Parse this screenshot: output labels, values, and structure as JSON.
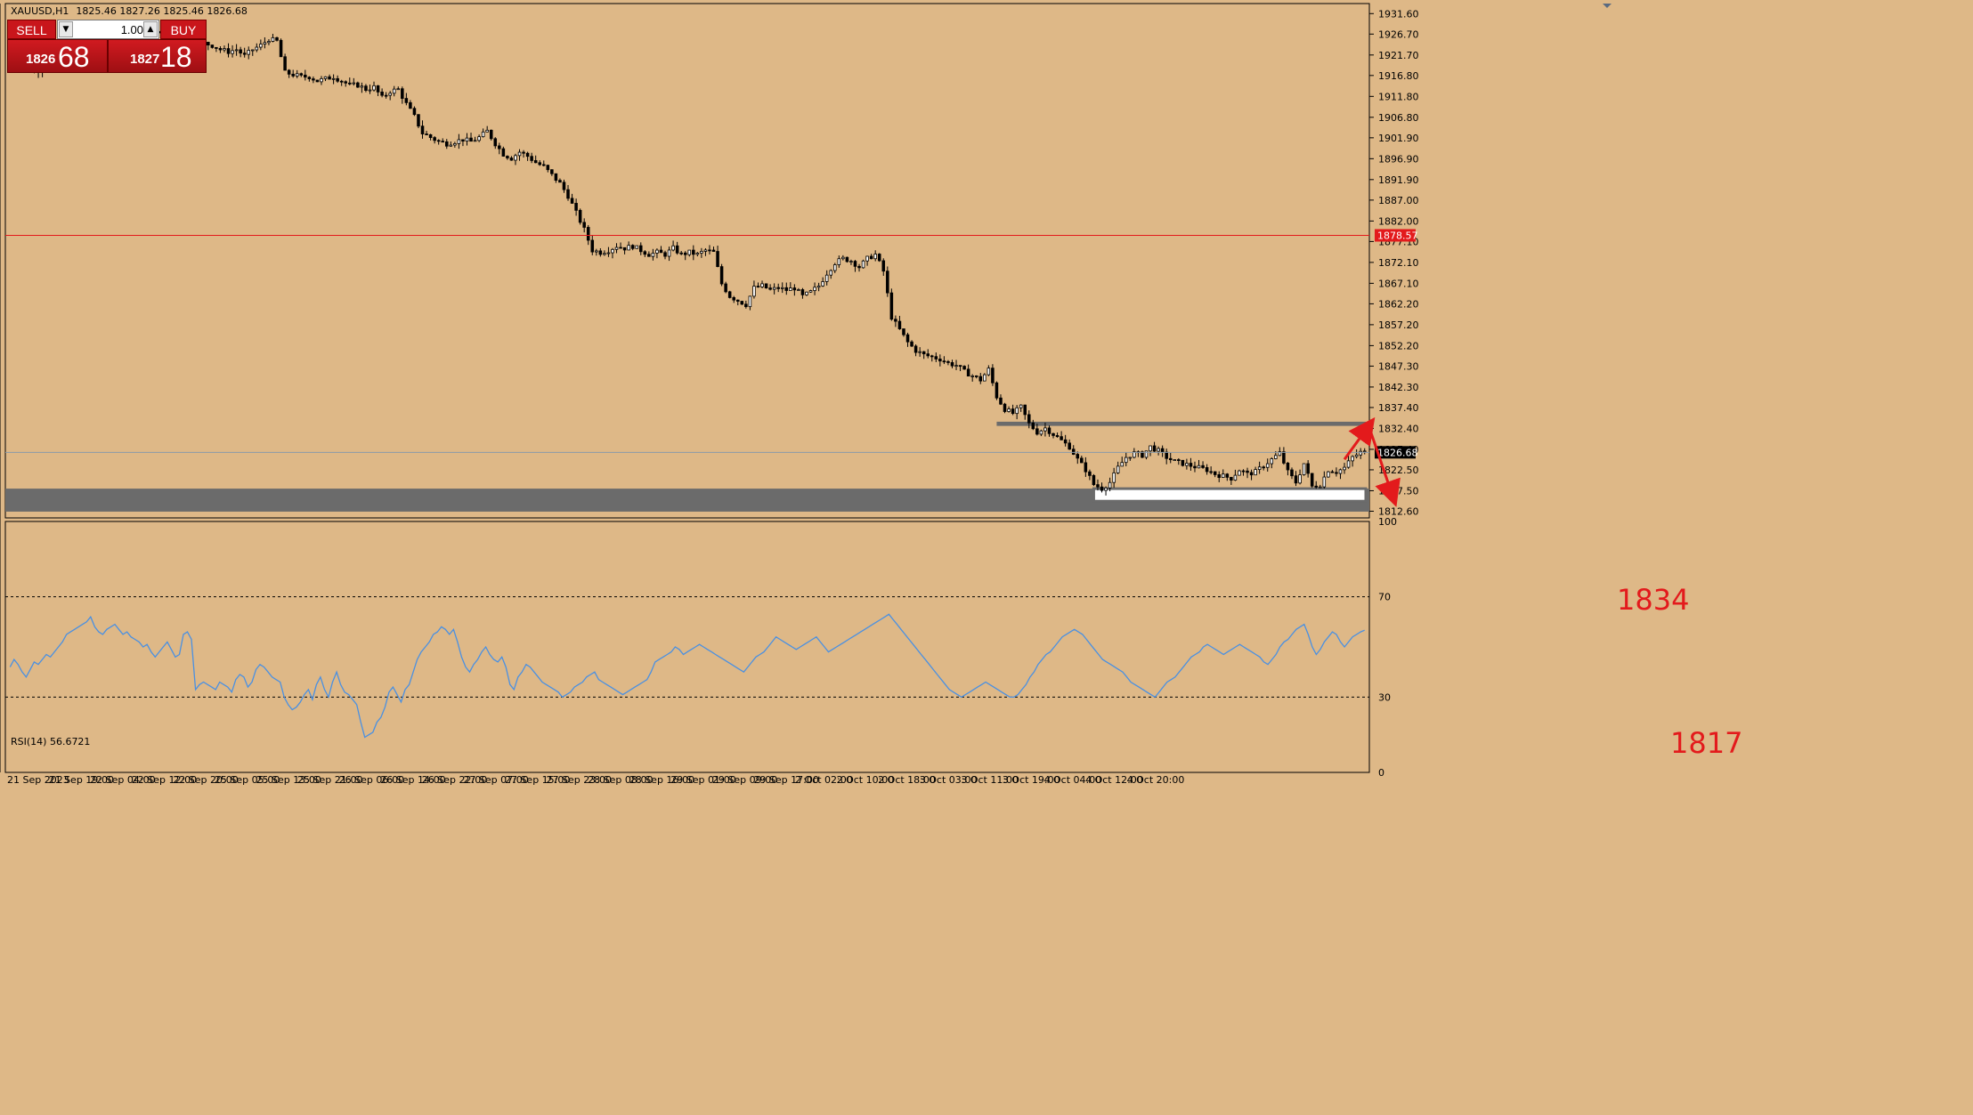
{
  "header": {
    "symbol": "XAUUSD,H1",
    "ohlc": "1825.46 1827.26 1825.46 1826.68"
  },
  "trade_panel": {
    "sell_label": "SELL",
    "buy_label": "BUY",
    "lot": "1.00",
    "sell_price_main": "1826",
    "sell_price_pips": "68",
    "buy_price_main": "1827",
    "buy_price_pips": "18"
  },
  "colors": {
    "background": "#deb887",
    "candle_up_fill": "#ffffff",
    "candle_down_fill": "#000000",
    "resistance_line": "#e31a1c",
    "zone": "#6b6b6b",
    "rsi_line": "#4a90e2",
    "annotation": "#e31a1c",
    "current_price_label": "#000000",
    "red_level_label": "#e31a1c"
  },
  "indicator": {
    "label": "RSI(14) 56.6721"
  },
  "annotations": {
    "upper": "1834",
    "lower": "1817"
  },
  "chart_data": [
    {
      "type": "candlestick",
      "title": "",
      "price_ticks": [
        "1931.60",
        "1926.70",
        "1921.70",
        "1916.80",
        "1911.80",
        "1906.80",
        "1901.90",
        "1896.90",
        "1891.90",
        "1887.00",
        "1882.00",
        "1877.10",
        "1872.10",
        "1867.10",
        "1862.20",
        "1857.20",
        "1852.20",
        "1847.30",
        "1842.30",
        "1837.40",
        "1832.40",
        "1827.40",
        "1822.50",
        "1817.50",
        "1812.60"
      ],
      "ylim": [
        1811.0,
        1934.0
      ],
      "time_labels": [
        "21 Sep 2023",
        "21 Sep 19:00",
        "22 Sep 04:00",
        "22 Sep 12:00",
        "22 Sep 20:00",
        "25 Sep 05:00",
        "25 Sep 13:00",
        "25 Sep 21:00",
        "26 Sep 06:00",
        "26 Sep 14:00",
        "26 Sep 22:00",
        "27 Sep 07:00",
        "27 Sep 15:00",
        "27 Sep 23:00",
        "28 Sep 08:00",
        "28 Sep 16:00",
        "29 Sep 01:00",
        "29 Sep 09:00",
        "29 Sep 17:00",
        "2 Oct 02:00",
        "2 Oct 10:00",
        "2 Oct 18:00",
        "3 Oct 03:00",
        "3 Oct 11:00",
        "3 Oct 19:00",
        "4 Oct 04:00",
        "4 Oct 12:00",
        "4 Oct 20:00"
      ],
      "close_path": [
        [
          0,
          1923.5
        ],
        [
          4,
          1921.0
        ],
        [
          6,
          1917.5
        ],
        [
          8,
          1919.0
        ],
        [
          10,
          1918.5
        ],
        [
          12,
          1920.0
        ],
        [
          14,
          1919.5
        ],
        [
          16,
          1920.0
        ],
        [
          18,
          1921.0
        ],
        [
          20,
          1923.0
        ],
        [
          22,
          1924.0
        ],
        [
          24,
          1925.5
        ],
        [
          26,
          1928.0
        ],
        [
          28,
          1929.0
        ],
        [
          30,
          1927.5
        ],
        [
          32,
          1929.0
        ],
        [
          34,
          1928.5
        ],
        [
          36,
          1927.0
        ],
        [
          38,
          1926.5
        ],
        [
          40,
          1926.0
        ],
        [
          42,
          1926.0
        ],
        [
          44,
          1925.5
        ],
        [
          46,
          1925.0
        ],
        [
          48,
          1924.5
        ],
        [
          50,
          1924.0
        ],
        [
          52,
          1923.0
        ],
        [
          54,
          1922.5
        ],
        [
          56,
          1923.0
        ],
        [
          58,
          1921.5
        ],
        [
          60,
          1923.0
        ],
        [
          62,
          1924.0
        ],
        [
          64,
          1925.5
        ],
        [
          66,
          1925.0
        ],
        [
          68,
          1917.5
        ],
        [
          70,
          1917.0
        ],
        [
          72,
          1916.5
        ],
        [
          74,
          1916.5
        ],
        [
          76,
          1915.5
        ],
        [
          78,
          1916.0
        ],
        [
          80,
          1916.5
        ],
        [
          82,
          1915.5
        ],
        [
          84,
          1914.5
        ],
        [
          86,
          1914.5
        ],
        [
          88,
          1913.5
        ],
        [
          90,
          1914.0
        ],
        [
          92,
          1911.5
        ],
        [
          94,
          1913.0
        ],
        [
          96,
          1913.5
        ],
        [
          98,
          1910.0
        ],
        [
          100,
          1907.0
        ],
        [
          102,
          1903.0
        ],
        [
          104,
          1902.0
        ],
        [
          106,
          1901.0
        ],
        [
          108,
          1900.5
        ],
        [
          110,
          1901.0
        ],
        [
          112,
          1901.5
        ],
        [
          114,
          1901.0
        ],
        [
          116,
          1902.0
        ],
        [
          118,
          1903.5
        ],
        [
          120,
          1900.5
        ],
        [
          122,
          1898.0
        ],
        [
          124,
          1897.0
        ],
        [
          126,
          1898.5
        ],
        [
          128,
          1897.5
        ],
        [
          130,
          1896.0
        ],
        [
          132,
          1895.0
        ],
        [
          134,
          1893.0
        ],
        [
          136,
          1891.0
        ],
        [
          138,
          1888.0
        ],
        [
          140,
          1884.0
        ],
        [
          142,
          1880.0
        ],
        [
          144,
          1875.0
        ],
        [
          146,
          1874.5
        ],
        [
          148,
          1875.0
        ],
        [
          150,
          1876.0
        ],
        [
          152,
          1875.5
        ],
        [
          154,
          1876.0
        ],
        [
          156,
          1875.0
        ],
        [
          158,
          1874.0
        ],
        [
          160,
          1874.5
        ],
        [
          162,
          1874.0
        ],
        [
          164,
          1875.5
        ],
        [
          166,
          1874.0
        ],
        [
          168,
          1874.5
        ],
        [
          170,
          1874.0
        ],
        [
          172,
          1875.0
        ],
        [
          174,
          1874.5
        ],
        [
          176,
          1867.0
        ],
        [
          178,
          1864.0
        ],
        [
          180,
          1863.0
        ],
        [
          182,
          1862.0
        ],
        [
          184,
          1866.0
        ],
        [
          186,
          1866.5
        ],
        [
          188,
          1865.5
        ],
        [
          190,
          1866.0
        ],
        [
          192,
          1865.5
        ],
        [
          194,
          1866.0
        ],
        [
          196,
          1864.0
        ],
        [
          198,
          1865.0
        ],
        [
          200,
          1866.5
        ],
        [
          202,
          1869.5
        ],
        [
          204,
          1872.0
        ],
        [
          206,
          1873.0
        ],
        [
          208,
          1872.5
        ],
        [
          210,
          1871.0
        ],
        [
          212,
          1873.0
        ],
        [
          214,
          1874.0
        ],
        [
          216,
          1870.0
        ],
        [
          218,
          1859.0
        ],
        [
          220,
          1856.0
        ],
        [
          222,
          1853.0
        ],
        [
          224,
          1851.0
        ],
        [
          226,
          1850.0
        ],
        [
          228,
          1849.5
        ],
        [
          230,
          1849.0
        ],
        [
          232,
          1848.0
        ],
        [
          234,
          1847.5
        ],
        [
          236,
          1846.0
        ],
        [
          238,
          1845.0
        ],
        [
          240,
          1844.0
        ],
        [
          242,
          1846.5
        ],
        [
          244,
          1840.0
        ],
        [
          246,
          1837.0
        ],
        [
          248,
          1836.0
        ],
        [
          250,
          1837.5
        ],
        [
          252,
          1833.5
        ],
        [
          254,
          1831.5
        ],
        [
          256,
          1832.5
        ],
        [
          258,
          1831.0
        ],
        [
          260,
          1829.5
        ],
        [
          262,
          1828.0
        ],
        [
          264,
          1825.0
        ],
        [
          266,
          1822.5
        ],
        [
          268,
          1819.0
        ],
        [
          270,
          1818.0
        ],
        [
          272,
          1819.5
        ],
        [
          274,
          1823.0
        ],
        [
          276,
          1825.5
        ],
        [
          278,
          1826.5
        ],
        [
          280,
          1826.0
        ],
        [
          282,
          1828.0
        ],
        [
          284,
          1827.0
        ],
        [
          286,
          1825.5
        ],
        [
          288,
          1824.5
        ],
        [
          290,
          1824.0
        ],
        [
          292,
          1823.5
        ],
        [
          294,
          1823.0
        ],
        [
          296,
          1822.5
        ],
        [
          298,
          1821.5
        ],
        [
          300,
          1821.0
        ],
        [
          302,
          1820.5
        ],
        [
          304,
          1822.5
        ],
        [
          306,
          1821.5
        ],
        [
          308,
          1822.0
        ],
        [
          310,
          1823.5
        ],
        [
          312,
          1825.0
        ],
        [
          314,
          1826.5
        ],
        [
          316,
          1822.0
        ],
        [
          318,
          1819.5
        ],
        [
          320,
          1824.0
        ],
        [
          322,
          1818.5
        ],
        [
          324,
          1819.0
        ],
        [
          326,
          1822.5
        ],
        [
          328,
          1822.0
        ],
        [
          330,
          1823.0
        ],
        [
          332,
          1825.5
        ],
        [
          334,
          1826.68
        ]
      ],
      "bars_total": 336,
      "resistance_level": 1878.57,
      "resistance_level_label": "1878.57",
      "current_price": 1826.68,
      "current_price_label": "1826.68",
      "zones": [
        {
          "name": "upper-zone",
          "from_bar": 244,
          "to_bar": 336,
          "price_high": 1834.0,
          "price_low": 1833.0
        },
        {
          "name": "support-band",
          "from_bar": 0,
          "to_bar": 336,
          "price_high": 1818.0,
          "price_low": 1812.5
        },
        {
          "name": "inner-range",
          "from_bar": 268,
          "to_bar": 336,
          "price_high": 1818.0,
          "price_low": 1815.0
        }
      ],
      "projection": [
        {
          "from_bar": 330,
          "from_price": 1825.0,
          "to_bar": 336,
          "to_price": 1833.0
        },
        {
          "from_bar": 336,
          "from_price": 1833.0,
          "to_bar": 342,
          "to_price": 1816.0
        }
      ]
    },
    {
      "type": "line",
      "name": "RSI(14)",
      "ylim": [
        0,
        100
      ],
      "levels": [
        30,
        70
      ],
      "tick_labels": [
        "100",
        "70",
        "30",
        "0"
      ],
      "values": [
        42,
        45,
        43,
        40,
        38,
        41,
        44,
        43,
        45,
        47,
        46,
        48,
        50,
        52,
        55,
        56,
        57,
        58,
        59,
        60,
        62,
        58,
        56,
        55,
        57,
        58,
        59,
        57,
        55,
        56,
        54,
        53,
        52,
        50,
        51,
        48,
        46,
        48,
        50,
        52,
        49,
        46,
        47,
        55,
        56,
        53,
        33,
        35,
        36,
        35,
        34,
        33,
        36,
        35,
        34,
        32,
        37,
        39,
        38,
        34,
        36,
        41,
        43,
        42,
        40,
        38,
        37,
        36,
        30,
        27,
        25,
        26,
        28,
        31,
        33,
        29,
        35,
        38,
        33,
        30,
        36,
        40,
        35,
        32,
        31,
        29,
        27,
        20,
        14,
        15,
        16,
        20,
        22,
        26,
        32,
        34,
        31,
        28,
        33,
        35,
        40,
        45,
        48,
        50,
        52,
        55,
        56,
        58,
        57,
        55,
        57,
        52,
        46,
        42,
        40,
        43,
        45,
        48,
        50,
        47,
        45,
        44,
        46,
        42,
        35,
        33,
        38,
        40,
        43,
        42,
        40,
        38,
        36,
        35,
        34,
        33,
        32,
        30,
        31,
        32,
        34,
        35,
        36,
        38,
        39,
        40,
        37,
        36,
        35,
        34,
        33,
        32,
        31,
        32,
        33,
        34,
        35,
        36,
        37,
        40,
        44,
        45,
        46,
        47,
        48,
        50,
        49,
        47,
        48,
        49,
        50,
        51,
        50,
        49,
        48,
        47,
        46,
        45,
        44,
        43,
        42,
        41,
        40,
        42,
        44,
        46,
        47,
        48,
        50,
        52,
        54,
        53,
        52,
        51,
        50,
        49,
        50,
        51,
        52,
        53,
        54,
        52,
        50,
        48,
        49,
        50,
        51,
        52,
        53,
        54,
        55,
        56,
        57,
        58,
        59,
        60,
        61,
        62,
        63,
        61,
        59,
        57,
        55,
        53,
        51,
        49,
        47,
        45,
        43,
        41,
        39,
        37,
        35,
        33,
        32,
        31,
        30,
        31,
        32,
        33,
        34,
        35,
        36,
        35,
        34,
        33,
        32,
        31,
        30,
        30,
        31,
        33,
        35,
        38,
        40,
        43,
        45,
        47,
        48,
        50,
        52,
        54,
        55,
        56,
        57,
        56,
        55,
        53,
        51,
        49,
        47,
        45,
        44,
        43,
        42,
        41,
        40,
        38,
        36,
        35,
        34,
        33,
        32,
        31,
        30,
        32,
        34,
        36,
        37,
        38,
        40,
        42,
        44,
        46,
        47,
        48,
        50,
        51,
        50,
        49,
        48,
        47,
        48,
        49,
        50,
        51,
        50,
        49,
        48,
        47,
        46,
        44,
        43,
        45,
        47,
        50,
        52,
        53,
        55,
        57,
        58,
        59,
        55,
        50,
        47,
        49,
        52,
        54,
        56,
        55,
        52,
        50,
        52,
        54,
        55,
        56,
        56.67
      ]
    }
  ]
}
